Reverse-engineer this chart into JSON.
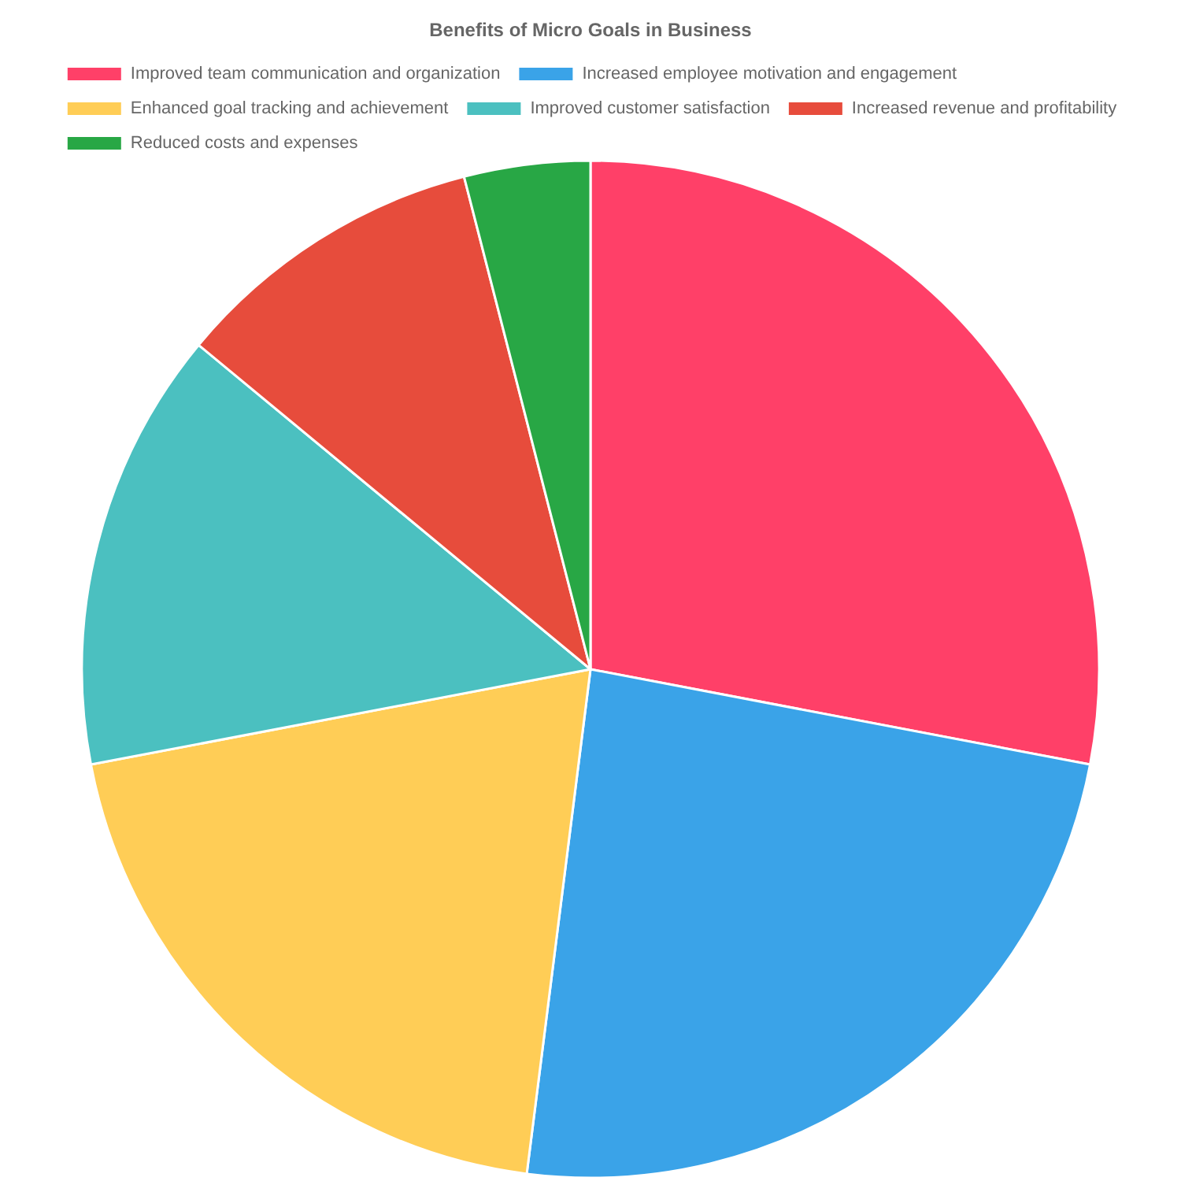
{
  "chart_data": {
    "type": "pie",
    "title": "Benefits of Micro Goals in Business",
    "categories": [
      "Improved team communication and organization",
      "Increased employee motivation and engagement",
      "Enhanced goal tracking and achievement",
      "Improved customer satisfaction",
      "Increased revenue and profitability",
      "Reduced costs and expenses"
    ],
    "values": [
      28,
      24,
      20,
      14,
      10,
      4
    ],
    "colors": [
      "#ff4068",
      "#3aa3e8",
      "#ffcd56",
      "#4bc0c0",
      "#e74c3c",
      "#28a745"
    ],
    "legend": "top"
  }
}
